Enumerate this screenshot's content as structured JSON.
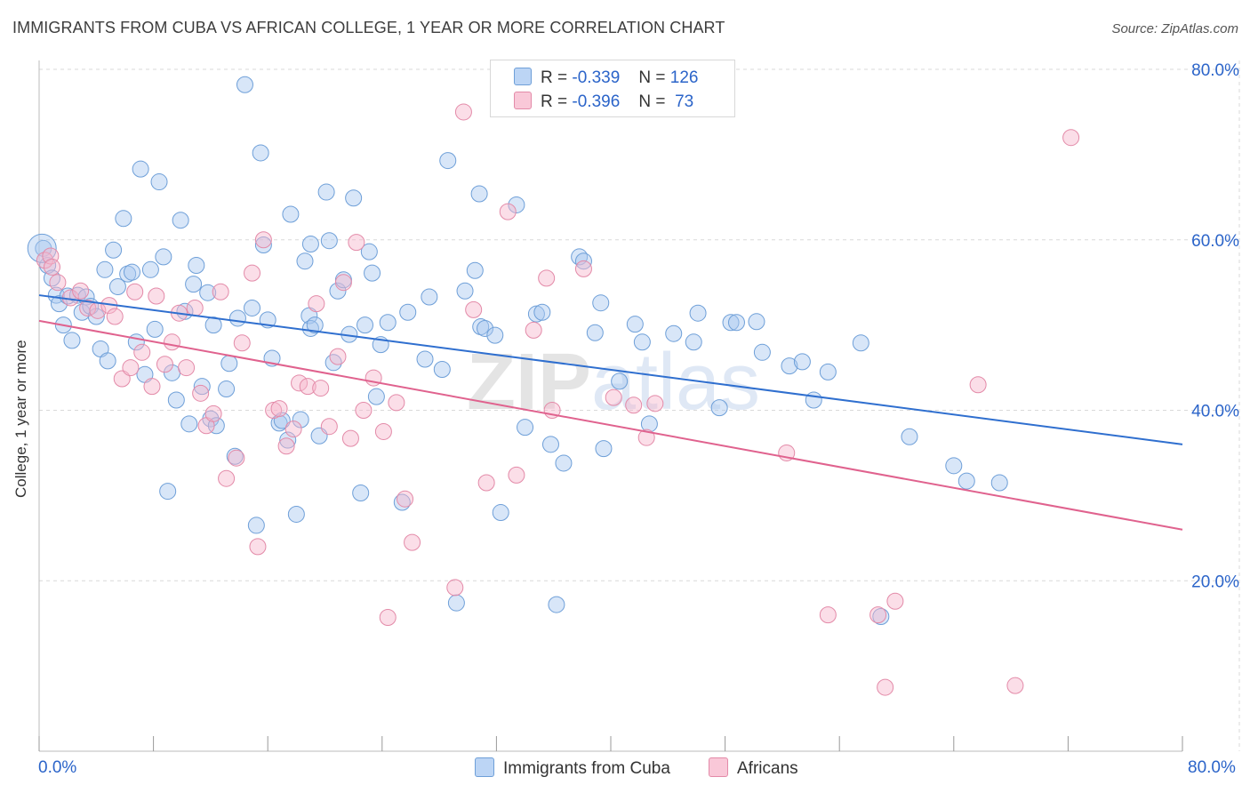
{
  "title": "IMMIGRANTS FROM CUBA VS AFRICAN COLLEGE, 1 YEAR OR MORE CORRELATION CHART",
  "source": "Source: ZipAtlas.com",
  "watermark": "ZIPatlas",
  "legend_top": [
    {
      "r_label": "R =",
      "r_value": "-0.339",
      "n_label": "N =",
      "n_value": "126",
      "color": "#a8c8f0"
    },
    {
      "r_label": "R =",
      "r_value": "-0.396",
      "n_label": "N =",
      "n_value": "73",
      "color": "#f7b6cb"
    }
  ],
  "x_min_label": "0.0%",
  "x_max_label": "80.0%",
  "colors": {
    "blue_fill": "#a8c8f0",
    "blue_stroke": "#6e9fd8",
    "blue_line": "#2f6fcf",
    "pink_fill": "#f7b6cb",
    "pink_stroke": "#e38aa8",
    "pink_line": "#e0628e",
    "grid": "#d9d9d9",
    "axis_text": "#2b64c9"
  },
  "chart_data": {
    "type": "scatter",
    "title": "IMMIGRANTS FROM CUBA VS AFRICAN COLLEGE, 1 YEAR OR MORE CORRELATION CHART",
    "xlabel": "",
    "ylabel": "College, 1 year or more",
    "xlim": [
      0,
      80
    ],
    "ylim": [
      0,
      82
    ],
    "y_ticks": [
      {
        "value": 20,
        "label": "20.0%"
      },
      {
        "value": 40,
        "label": "40.0%"
      },
      {
        "value": 60,
        "label": "60.0%"
      },
      {
        "value": 80,
        "label": "80.0%"
      }
    ],
    "x_ticks": [
      0,
      8,
      16,
      24,
      32,
      40,
      48,
      56,
      64,
      72,
      80
    ],
    "grid": true,
    "legend_placement": "bottom",
    "series": [
      {
        "name": "Immigrants from Cuba",
        "color": "#a8c8f0",
        "trend": {
          "x": [
            0,
            80
          ],
          "y": [
            53.5,
            36.0
          ]
        },
        "points": [
          [
            0.3,
            59
          ],
          [
            0.6,
            57
          ],
          [
            0.9,
            55.5
          ],
          [
            1.2,
            53.5
          ],
          [
            1.4,
            52.5
          ],
          [
            1.7,
            50
          ],
          [
            2.0,
            53.4
          ],
          [
            2.3,
            48.2
          ],
          [
            2.7,
            53.5
          ],
          [
            3.0,
            51.5
          ],
          [
            3.3,
            53.3
          ],
          [
            3.6,
            52.2
          ],
          [
            4.0,
            51.0
          ],
          [
            4.3,
            47.2
          ],
          [
            4.6,
            56.5
          ],
          [
            4.8,
            45.8
          ],
          [
            5.2,
            58.8
          ],
          [
            5.5,
            54.5
          ],
          [
            5.9,
            62.5
          ],
          [
            6.2,
            56.0
          ],
          [
            6.5,
            56.2
          ],
          [
            6.8,
            48.0
          ],
          [
            7.1,
            68.3
          ],
          [
            7.4,
            44.2
          ],
          [
            7.8,
            56.5
          ],
          [
            8.1,
            49.5
          ],
          [
            8.4,
            66.8
          ],
          [
            8.7,
            58.0
          ],
          [
            9.0,
            30.5
          ],
          [
            9.3,
            44.4
          ],
          [
            9.6,
            41.2
          ],
          [
            9.9,
            62.3
          ],
          [
            10.2,
            51.6
          ],
          [
            10.5,
            38.4
          ],
          [
            10.8,
            54.8
          ],
          [
            11.0,
            57.0
          ],
          [
            11.4,
            42.8
          ],
          [
            11.8,
            53.8
          ],
          [
            12.0,
            39.0
          ],
          [
            12.2,
            50.0
          ],
          [
            12.4,
            38.2
          ],
          [
            13.1,
            42.5
          ],
          [
            13.3,
            45.5
          ],
          [
            13.7,
            34.6
          ],
          [
            13.9,
            50.8
          ],
          [
            14.4,
            78.2
          ],
          [
            14.9,
            52.0
          ],
          [
            15.2,
            26.5
          ],
          [
            15.5,
            70.2
          ],
          [
            15.7,
            59.4
          ],
          [
            16.0,
            50.6
          ],
          [
            16.3,
            46.1
          ],
          [
            16.8,
            38.5
          ],
          [
            17.0,
            38.8
          ],
          [
            17.4,
            36.5
          ],
          [
            17.6,
            63.0
          ],
          [
            18.0,
            27.8
          ],
          [
            18.3,
            38.9
          ],
          [
            18.6,
            57.5
          ],
          [
            18.9,
            51.1
          ],
          [
            19.0,
            49.6
          ],
          [
            19.3,
            50.0
          ],
          [
            19.6,
            37.0
          ],
          [
            20.1,
            65.6
          ],
          [
            20.3,
            59.9
          ],
          [
            20.6,
            45.6
          ],
          [
            20.9,
            54.0
          ],
          [
            21.3,
            55.3
          ],
          [
            21.7,
            48.9
          ],
          [
            22.0,
            64.9
          ],
          [
            22.5,
            30.3
          ],
          [
            22.8,
            50.0
          ],
          [
            23.1,
            58.6
          ],
          [
            23.3,
            56.1
          ],
          [
            23.6,
            41.6
          ],
          [
            23.9,
            47.7
          ],
          [
            24.4,
            50.3
          ],
          [
            25.4,
            29.2
          ],
          [
            25.8,
            51.5
          ],
          [
            27.0,
            46.0
          ],
          [
            27.3,
            53.3
          ],
          [
            28.2,
            44.8
          ],
          [
            28.6,
            69.3
          ],
          [
            29.8,
            54.0
          ],
          [
            30.5,
            56.4
          ],
          [
            30.8,
            65.4
          ],
          [
            30.9,
            49.8
          ],
          [
            31.2,
            49.6
          ],
          [
            31.9,
            48.8
          ],
          [
            32.3,
            28.0
          ],
          [
            33.4,
            64.1
          ],
          [
            34.0,
            38.0
          ],
          [
            34.8,
            51.3
          ],
          [
            35.2,
            51.5
          ],
          [
            35.8,
            36.0
          ],
          [
            36.2,
            17.2
          ],
          [
            36.7,
            33.8
          ],
          [
            37.8,
            58.0
          ],
          [
            38.1,
            57.5
          ],
          [
            38.9,
            49.1
          ],
          [
            39.3,
            52.6
          ],
          [
            39.5,
            35.5
          ],
          [
            40.6,
            43.4
          ],
          [
            41.7,
            50.1
          ],
          [
            42.2,
            48.0
          ],
          [
            42.7,
            38.4
          ],
          [
            44.4,
            49.0
          ],
          [
            45.8,
            48.0
          ],
          [
            46.1,
            51.4
          ],
          [
            47.6,
            40.3
          ],
          [
            48.4,
            50.3
          ],
          [
            48.8,
            50.3
          ],
          [
            50.2,
            50.4
          ],
          [
            50.6,
            46.8
          ],
          [
            52.5,
            45.2
          ],
          [
            53.4,
            45.7
          ],
          [
            54.2,
            41.2
          ],
          [
            55.2,
            44.5
          ],
          [
            57.5,
            47.9
          ],
          [
            58.9,
            15.8
          ],
          [
            60.9,
            36.9
          ],
          [
            64.0,
            33.5
          ],
          [
            64.9,
            31.7
          ],
          [
            67.2,
            31.5
          ],
          [
            29.2,
            17.4
          ],
          [
            19.0,
            59.5
          ]
        ]
      },
      {
        "name": "Africans",
        "color": "#f7b6cb",
        "trend": {
          "x": [
            0,
            80
          ],
          "y": [
            50.5,
            26.0
          ]
        },
        "points": [
          [
            0.4,
            57.6
          ],
          [
            0.8,
            58.1
          ],
          [
            1.3,
            55.0
          ],
          [
            2.2,
            53.2
          ],
          [
            2.9,
            54.0
          ],
          [
            3.4,
            52.0
          ],
          [
            4.1,
            51.7
          ],
          [
            4.9,
            52.3
          ],
          [
            5.3,
            51.0
          ],
          [
            5.8,
            43.7
          ],
          [
            6.4,
            45.0
          ],
          [
            6.7,
            53.9
          ],
          [
            7.2,
            46.8
          ],
          [
            7.9,
            42.8
          ],
          [
            8.2,
            53.4
          ],
          [
            8.8,
            45.4
          ],
          [
            9.3,
            48.0
          ],
          [
            9.8,
            51.4
          ],
          [
            10.3,
            45.0
          ],
          [
            10.9,
            52.0
          ],
          [
            11.3,
            42.0
          ],
          [
            11.7,
            38.2
          ],
          [
            12.2,
            39.6
          ],
          [
            12.7,
            53.9
          ],
          [
            13.1,
            32.0
          ],
          [
            13.8,
            34.4
          ],
          [
            14.2,
            47.9
          ],
          [
            14.9,
            56.1
          ],
          [
            15.3,
            24.0
          ],
          [
            15.7,
            60.0
          ],
          [
            16.4,
            40.0
          ],
          [
            16.8,
            40.2
          ],
          [
            17.3,
            35.8
          ],
          [
            17.8,
            37.8
          ],
          [
            18.2,
            43.2
          ],
          [
            18.8,
            42.8
          ],
          [
            19.4,
            52.5
          ],
          [
            19.7,
            42.6
          ],
          [
            20.3,
            38.1
          ],
          [
            20.9,
            46.3
          ],
          [
            21.3,
            55.0
          ],
          [
            21.8,
            36.7
          ],
          [
            22.2,
            59.7
          ],
          [
            22.7,
            40.0
          ],
          [
            23.4,
            43.8
          ],
          [
            24.1,
            37.5
          ],
          [
            24.4,
            15.7
          ],
          [
            25.0,
            40.9
          ],
          [
            25.6,
            29.6
          ],
          [
            26.1,
            24.5
          ],
          [
            29.1,
            19.2
          ],
          [
            29.7,
            75.0
          ],
          [
            30.4,
            51.8
          ],
          [
            31.3,
            31.5
          ],
          [
            32.8,
            63.3
          ],
          [
            33.4,
            32.4
          ],
          [
            34.6,
            49.4
          ],
          [
            35.5,
            55.5
          ],
          [
            35.9,
            40.0
          ],
          [
            38.1,
            56.6
          ],
          [
            40.2,
            41.5
          ],
          [
            41.6,
            40.6
          ],
          [
            42.5,
            36.8
          ],
          [
            43.1,
            40.8
          ],
          [
            52.3,
            35.0
          ],
          [
            55.2,
            16.0
          ],
          [
            58.7,
            16.0
          ],
          [
            59.2,
            7.5
          ],
          [
            59.9,
            17.6
          ],
          [
            65.7,
            43.0
          ],
          [
            68.3,
            7.7
          ],
          [
            72.2,
            72.0
          ],
          [
            0.9,
            56.8
          ]
        ]
      }
    ]
  },
  "bottom_legend": [
    {
      "label": "Immigrants from Cuba",
      "color": "#a8c8f0"
    },
    {
      "label": "Africans",
      "color": "#f7b6cb"
    }
  ]
}
